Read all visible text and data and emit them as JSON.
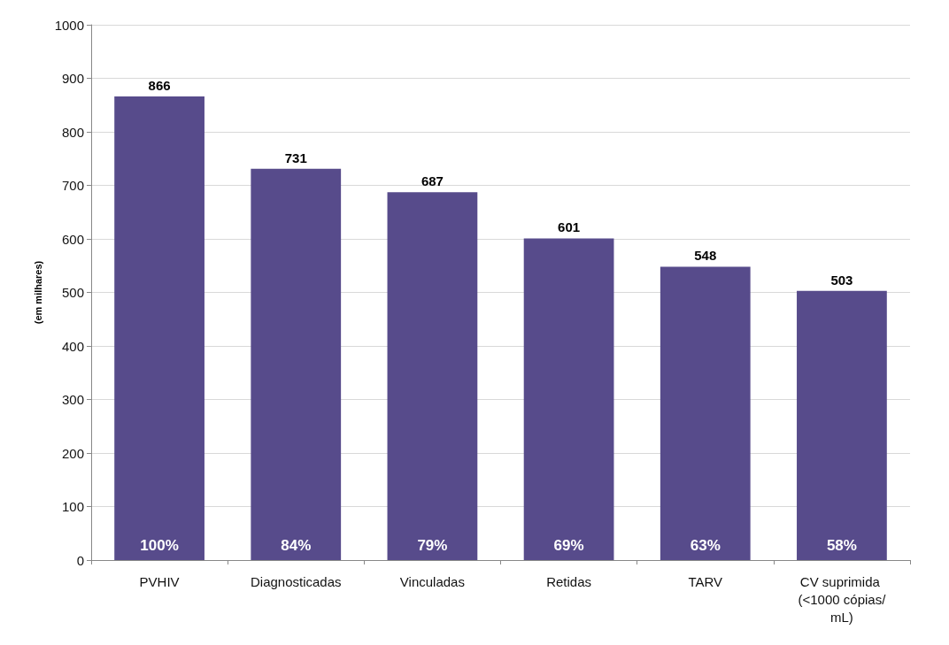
{
  "chart_data": {
    "type": "bar",
    "ylabel": "(em milhares)",
    "categories": [
      "PVHIV",
      "Diagnosticadas",
      "Vinculadas",
      "Retidas",
      "TARV",
      "CV suprimida (<1000 cópias/mL)"
    ],
    "values": [
      866,
      731,
      687,
      601,
      548,
      503
    ],
    "color": "#574b8b",
    "ylim": [
      0,
      1000
    ],
    "yticks": [
      0,
      100,
      200,
      300,
      400,
      500,
      600,
      700,
      800,
      900,
      1000
    ],
    "grid": "y",
    "data_labels": true,
    "annotations": [
      {
        "text": "100%",
        "x": "PVHIV",
        "y": 0
      },
      {
        "text": "84%",
        "x": "Diagnosticadas",
        "y": 0
      },
      {
        "text": "79%",
        "x": "Vinculadas",
        "y": 0
      },
      {
        "text": "69%",
        "x": "Retidas",
        "y": 0
      },
      {
        "text": "63%",
        "x": "TARV",
        "y": 0
      },
      {
        "text": "58%",
        "x": "CV suprimida (<1000 cópias/mL)",
        "y": 0
      }
    ]
  }
}
